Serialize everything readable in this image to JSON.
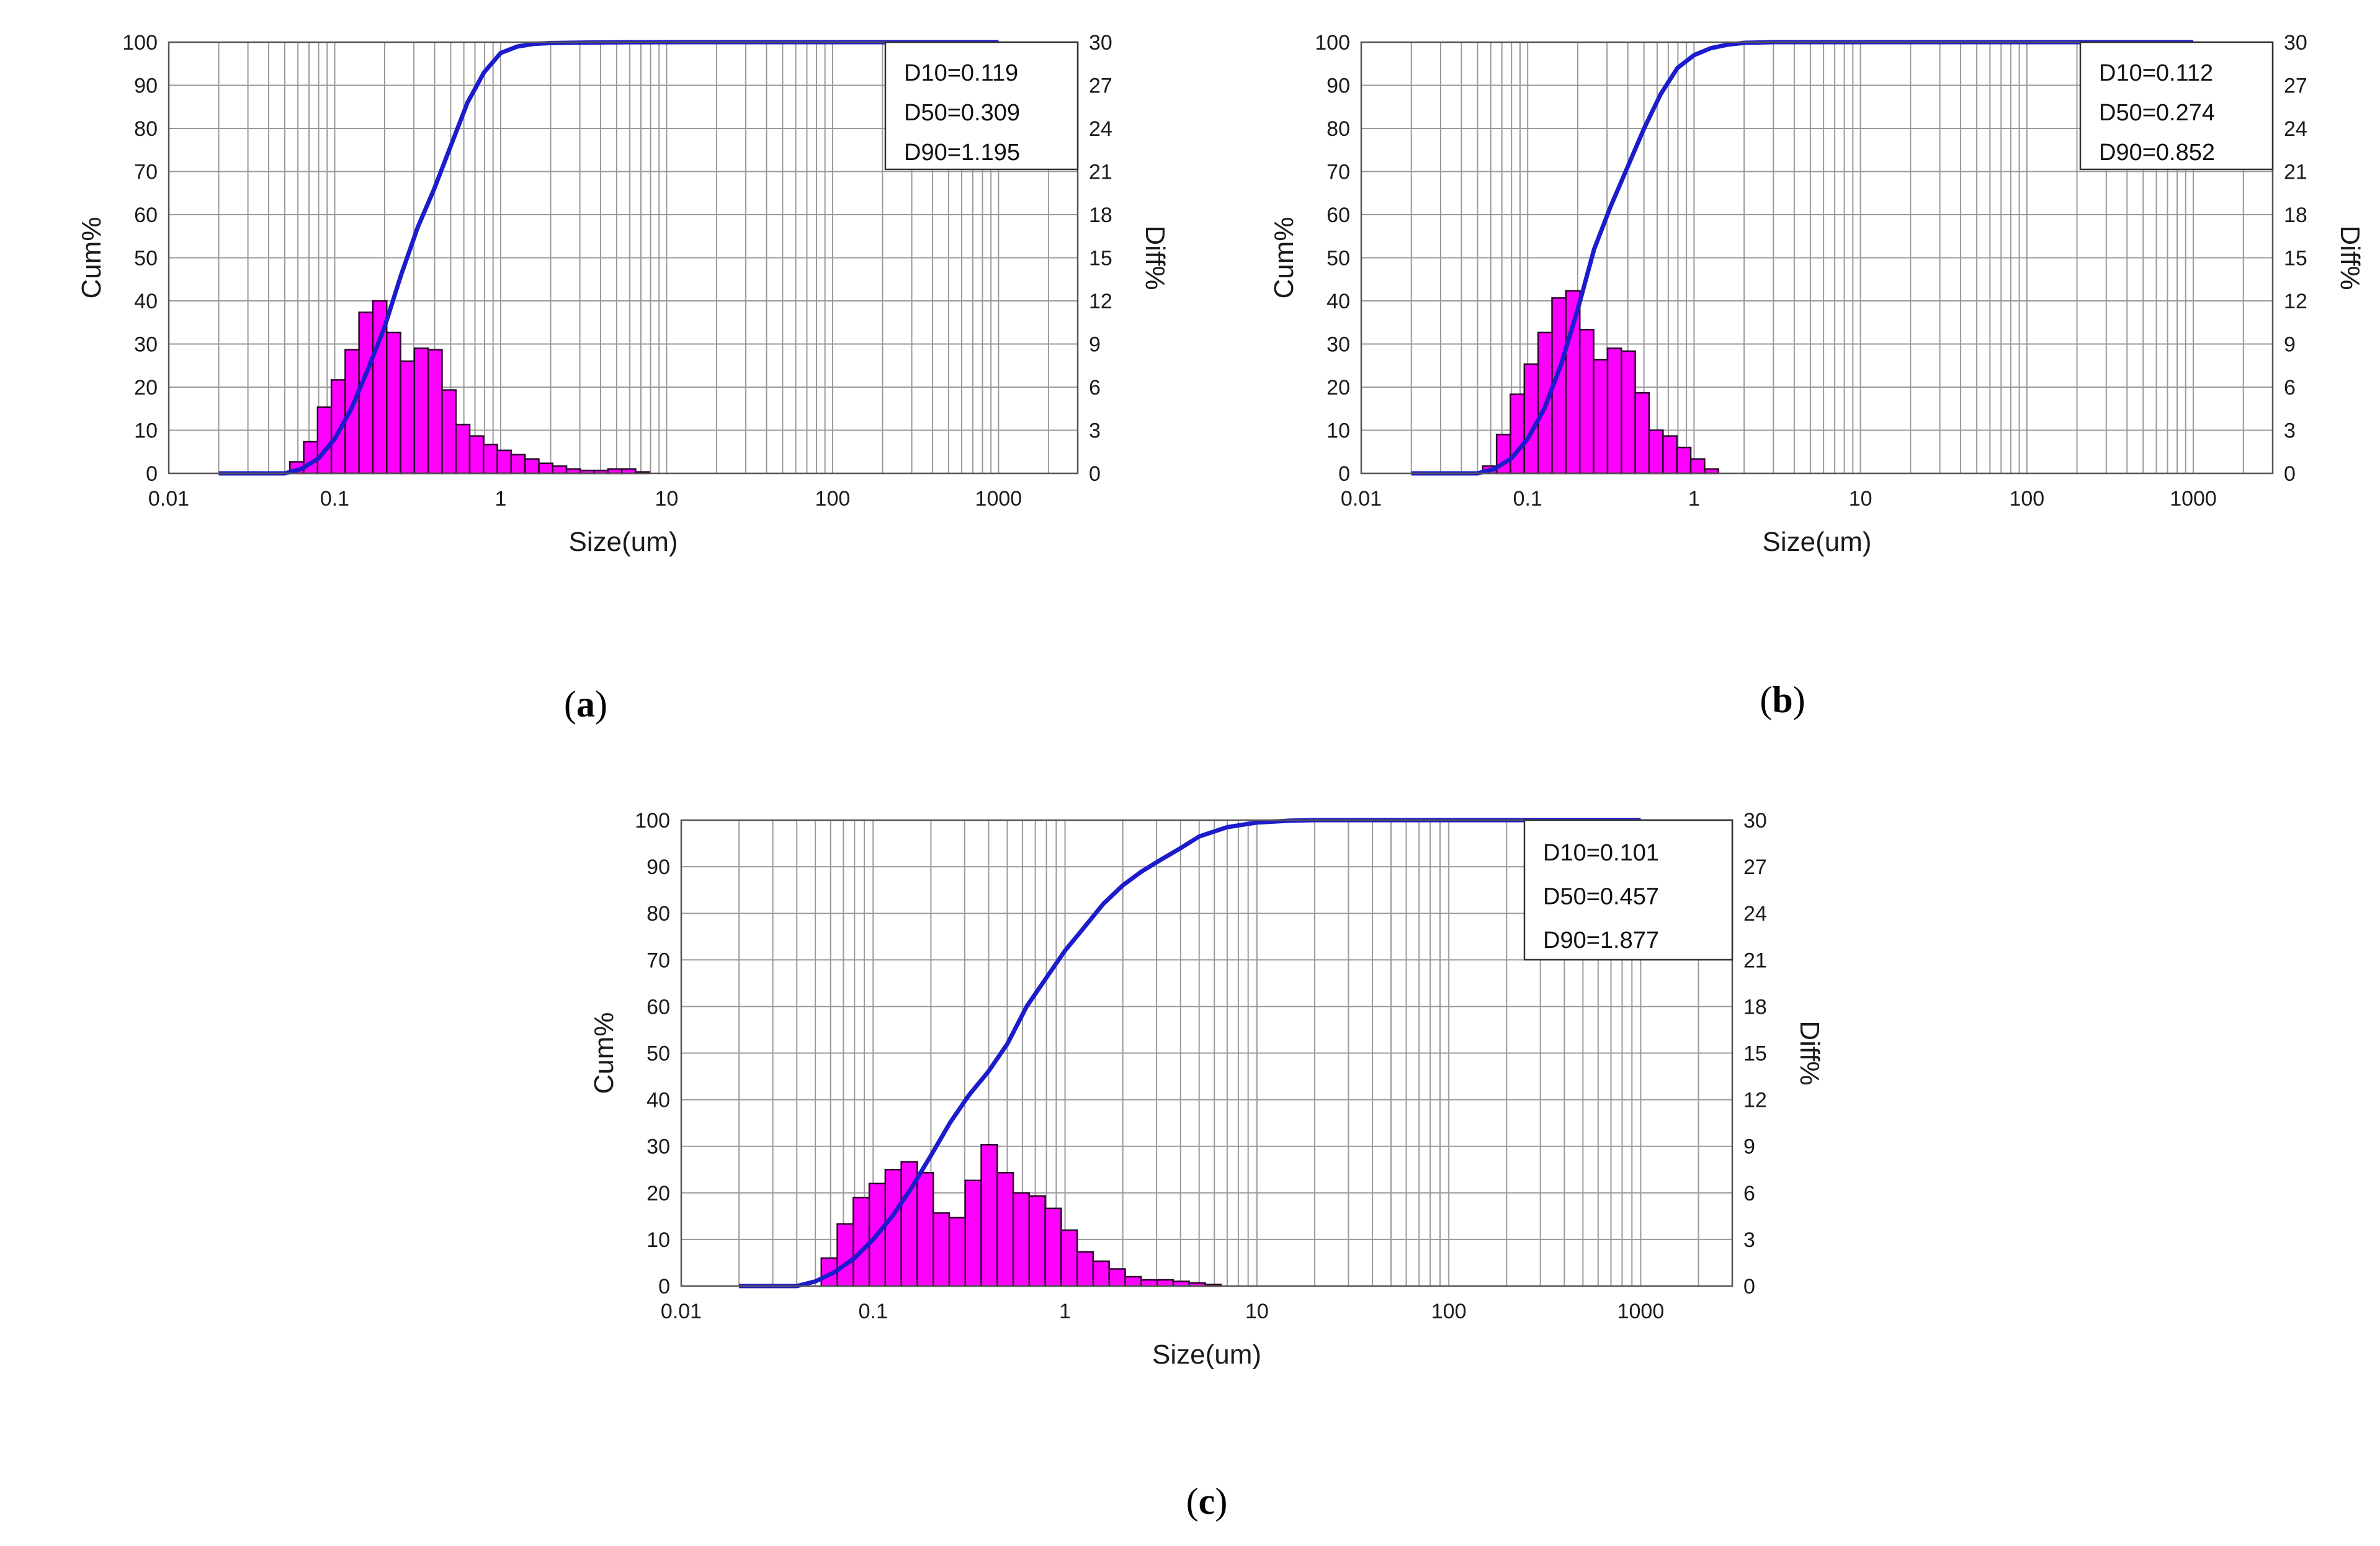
{
  "colors": {
    "bar_fill": "#ff00ff",
    "bar_stroke": "#2a002a",
    "curve": "#1c1ccc",
    "grid": "#9a9a9a",
    "frame": "#555555"
  },
  "chart_data": [
    {
      "type": "bar",
      "panel": "a",
      "caption_open": "(",
      "caption_letter": "a",
      "caption_close": ")",
      "xlabel": "Size(um)",
      "ylabel_left": "Cum%",
      "ylabel_right": "Diff%",
      "xscale": "log",
      "xlim": [
        0.01,
        3000
      ],
      "xticks": [
        0.01,
        0.1,
        1,
        10,
        100,
        1000
      ],
      "xtick_labels": [
        "0.01",
        "0.1",
        "1",
        "10",
        "100",
        "1000"
      ],
      "ylim_left": [
        0,
        100
      ],
      "yticks_left": [
        "0",
        "10",
        "20",
        "30",
        "40",
        "50",
        "60",
        "70",
        "80",
        "90",
        "100"
      ],
      "ylim_right": [
        0,
        30
      ],
      "yticks_right": [
        "0",
        "3",
        "6",
        "9",
        "12",
        "15",
        "18",
        "21",
        "24",
        "27",
        "30"
      ],
      "stats": [
        "D10=0.119",
        "D50=0.309",
        "D90=1.195"
      ],
      "legend_position": "top-right",
      "bins_from": 0.0537,
      "bins_per_decade": 12,
      "diff_values": [
        0.8,
        2.2,
        4.6,
        6.5,
        8.6,
        11.2,
        12.0,
        9.8,
        7.8,
        8.7,
        8.6,
        5.8,
        3.4,
        2.6,
        2.0,
        1.6,
        1.3,
        1.0,
        0.7,
        0.5,
        0.3,
        0.2,
        0.2,
        0.3,
        0.3,
        0.1
      ],
      "cum_x": [
        0.02,
        0.05,
        0.063,
        0.08,
        0.1,
        0.126,
        0.158,
        0.2,
        0.251,
        0.316,
        0.398,
        0.501,
        0.631,
        0.794,
        1,
        1.26,
        1.58,
        2,
        3.16,
        5,
        8,
        12,
        20,
        1000
      ],
      "cum_y": [
        0,
        0,
        1,
        3.5,
        8,
        15,
        24,
        34,
        46,
        57,
        66,
        76,
        86,
        93,
        97.5,
        99.0,
        99.6,
        99.8,
        99.92,
        99.97,
        99.99,
        100,
        100,
        100
      ]
    },
    {
      "type": "bar",
      "panel": "b",
      "caption_open": "(",
      "caption_letter": "b",
      "caption_close": ")",
      "xlabel": "Size(um)",
      "ylabel_left": "Cum%",
      "ylabel_right": "Diff%",
      "xscale": "log",
      "xlim": [
        0.01,
        3000
      ],
      "xticks": [
        0.01,
        0.1,
        1,
        10,
        100,
        1000
      ],
      "xtick_labels": [
        "0.01",
        "0.1",
        "1",
        "10",
        "100",
        "1000"
      ],
      "ylim_left": [
        0,
        100
      ],
      "yticks_left": [
        "0",
        "10",
        "20",
        "30",
        "40",
        "50",
        "60",
        "70",
        "80",
        "90",
        "100"
      ],
      "ylim_right": [
        0,
        30
      ],
      "yticks_right": [
        "0",
        "3",
        "6",
        "9",
        "12",
        "15",
        "18",
        "21",
        "24",
        "27",
        "30"
      ],
      "stats": [
        "D10=0.112",
        "D50=0.274",
        "D90=0.852"
      ],
      "legend_position": "top-right",
      "bins_from": 0.0537,
      "bins_per_decade": 12,
      "diff_values": [
        0.5,
        2.7,
        5.5,
        7.6,
        9.8,
        12.2,
        12.7,
        10.0,
        7.9,
        8.7,
        8.5,
        5.6,
        3.0,
        2.6,
        1.8,
        1.0,
        0.3
      ],
      "cum_x": [
        0.02,
        0.05,
        0.063,
        0.08,
        0.1,
        0.126,
        0.158,
        0.2,
        0.251,
        0.316,
        0.398,
        0.501,
        0.631,
        0.794,
        1,
        1.26,
        1.58,
        2,
        3,
        1000
      ],
      "cum_y": [
        0,
        0,
        1,
        3.5,
        8,
        15,
        25,
        38,
        52,
        62,
        71,
        80,
        88,
        94,
        97,
        98.6,
        99.4,
        99.85,
        100,
        100
      ]
    },
    {
      "type": "bar",
      "panel": "c",
      "caption_open": "(",
      "caption_letter": "c",
      "caption_close": ")",
      "xlabel": "Size(um)",
      "ylabel_left": "Cum%",
      "ylabel_right": "Diff%",
      "xscale": "log",
      "xlim": [
        0.01,
        3000
      ],
      "xticks": [
        0.01,
        0.1,
        1,
        10,
        100,
        1000
      ],
      "xtick_labels": [
        "0.01",
        "0.1",
        "1",
        "10",
        "100",
        "1000"
      ],
      "ylim_left": [
        0,
        100
      ],
      "yticks_left": [
        "0",
        "10",
        "20",
        "30",
        "40",
        "50",
        "60",
        "70",
        "80",
        "90",
        "100"
      ],
      "ylim_right": [
        0,
        30
      ],
      "yticks_right": [
        "0",
        "3",
        "6",
        "9",
        "12",
        "15",
        "18",
        "21",
        "24",
        "27",
        "30"
      ],
      "stats": [
        "D10=0.101",
        "D50=0.457",
        "D90=1.877"
      ],
      "legend_position": "top-right",
      "bins_from": 0.0537,
      "bins_per_decade": 12,
      "diff_values": [
        1.8,
        4.0,
        5.7,
        6.6,
        7.5,
        8.0,
        7.3,
        4.7,
        4.4,
        6.8,
        9.1,
        7.3,
        6.0,
        5.8,
        5.0,
        3.6,
        2.2,
        1.6,
        1.1,
        0.6,
        0.4,
        0.4,
        0.3,
        0.2,
        0.1
      ],
      "cum_x": [
        0.02,
        0.04,
        0.05,
        0.063,
        0.08,
        0.1,
        0.126,
        0.158,
        0.2,
        0.251,
        0.316,
        0.398,
        0.501,
        0.631,
        0.794,
        1,
        1.26,
        1.58,
        2,
        2.51,
        3.16,
        4,
        5,
        7,
        10,
        15,
        20,
        1000
      ],
      "cum_y": [
        0,
        0,
        1,
        3,
        6,
        10,
        15,
        21,
        28,
        35,
        41,
        46,
        52,
        60,
        66,
        72,
        77,
        82,
        86,
        89,
        91.5,
        94,
        96.5,
        98.5,
        99.5,
        99.9,
        100,
        100
      ]
    }
  ]
}
